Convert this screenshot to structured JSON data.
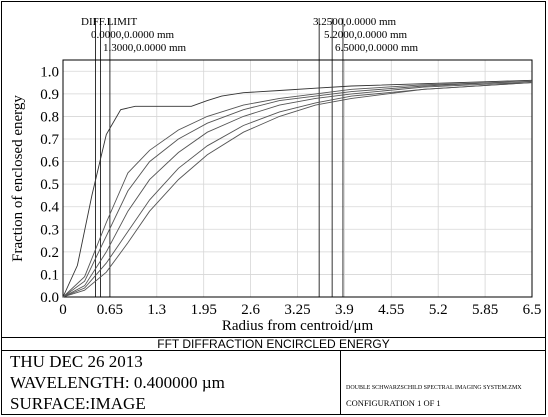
{
  "chart_data": {
    "type": "line",
    "title": "FFT DIFFRACTION ENCIRCLED ENERGY",
    "xlabel": "Radius from centroid/μm",
    "ylabel": "Fraction of enclosed energy",
    "xlim": [
      0,
      6.5
    ],
    "ylim": [
      0,
      1.05
    ],
    "xticks": [
      "0",
      "0.65",
      "1.3",
      "1.95",
      "2.6",
      "3.25",
      "3.9",
      "4.55",
      "5.2",
      "5.85",
      "6.5"
    ],
    "yticks": [
      "0.0",
      "0.1",
      "0.2",
      "0.3",
      "0.4",
      "0.5",
      "0.6",
      "0.7",
      "0.8",
      "0.9",
      "1.0"
    ],
    "grid": true,
    "legend_labels": [
      "DIFF.LIMIT",
      "0.0000,0.0000 mm",
      "1.3000,0.0000 mm",
      "3.2500,0.0000 mm",
      "5.2000,0.0000 mm",
      "6.5000,0.0000 mm"
    ],
    "series": [
      {
        "name": "DIFF.LIMIT",
        "x": [
          0,
          0.2,
          0.4,
          0.6,
          0.8,
          1.0,
          1.2,
          1.78,
          2.0,
          2.2,
          2.5,
          3.0,
          3.5,
          4.0,
          5.0,
          6.0,
          6.5
        ],
        "y": [
          0,
          0.14,
          0.45,
          0.72,
          0.83,
          0.845,
          0.845,
          0.845,
          0.87,
          0.89,
          0.905,
          0.915,
          0.925,
          0.935,
          0.945,
          0.955,
          0.96
        ]
      },
      {
        "name": "0.0000,0.0000 mm",
        "x": [
          0,
          0.3,
          0.6,
          0.9,
          1.2,
          1.6,
          2.0,
          2.5,
          3.0,
          3.5,
          4.0,
          5.0,
          6.0,
          6.5
        ],
        "y": [
          0,
          0.09,
          0.33,
          0.55,
          0.65,
          0.74,
          0.8,
          0.85,
          0.88,
          0.9,
          0.92,
          0.94,
          0.95,
          0.955
        ]
      },
      {
        "name": "1.3000,0.0000 mm",
        "x": [
          0,
          0.3,
          0.6,
          0.9,
          1.2,
          1.6,
          2.0,
          2.5,
          3.0,
          3.5,
          4.0,
          5.0,
          6.0,
          6.5
        ],
        "y": [
          0,
          0.07,
          0.27,
          0.47,
          0.6,
          0.7,
          0.77,
          0.83,
          0.87,
          0.89,
          0.91,
          0.935,
          0.95,
          0.955
        ]
      },
      {
        "name": "3.2500,0.0000 mm",
        "x": [
          0,
          0.3,
          0.6,
          0.9,
          1.2,
          1.6,
          2.0,
          2.5,
          3.0,
          3.5,
          4.0,
          5.0,
          6.0,
          6.5
        ],
        "y": [
          0,
          0.05,
          0.2,
          0.38,
          0.52,
          0.64,
          0.73,
          0.8,
          0.85,
          0.88,
          0.9,
          0.93,
          0.945,
          0.95
        ]
      },
      {
        "name": "5.2000,0.0000 mm",
        "x": [
          0,
          0.3,
          0.6,
          0.9,
          1.2,
          1.6,
          2.0,
          2.5,
          3.0,
          3.5,
          4.0,
          5.0,
          6.0,
          6.5
        ],
        "y": [
          0,
          0.04,
          0.15,
          0.29,
          0.43,
          0.57,
          0.67,
          0.76,
          0.82,
          0.86,
          0.89,
          0.92,
          0.94,
          0.95
        ]
      },
      {
        "name": "6.5000,0.0000 mm",
        "x": [
          0,
          0.3,
          0.6,
          0.9,
          1.2,
          1.6,
          2.0,
          2.5,
          3.0,
          3.5,
          4.0,
          5.0,
          6.0,
          6.5
        ],
        "y": [
          0,
          0.03,
          0.11,
          0.24,
          0.38,
          0.52,
          0.63,
          0.73,
          0.8,
          0.85,
          0.88,
          0.92,
          0.94,
          0.95
        ]
      }
    ],
    "markers": [
      {
        "label": "DIFF.LIMIT",
        "x": 0.45
      },
      {
        "label": "0.0000,0.0000 mm",
        "x": 0.52
      },
      {
        "label": "1.3000,0.0000 mm",
        "x": 0.65
      },
      {
        "label": "3.2500,0.0000 mm",
        "x": 3.55
      },
      {
        "label": "5.2000,0.0000 mm",
        "x": 3.73
      },
      {
        "label": "6.5000,0.0000 mm",
        "x": 3.88
      }
    ]
  },
  "footer": {
    "title": "FFT DIFFRACTION ENCIRCLED ENERGY",
    "date": "THU DEC 26 2013",
    "wavelength": "WAVELENGTH: 0.400000 µm",
    "surface": "SURFACE:IMAGE",
    "file": "DOUBLE SCHWARZSCHILD SPECTRAL IMAGING SYSTEM.ZMX",
    "config": "CONFIGURATION  1 OF 1"
  }
}
